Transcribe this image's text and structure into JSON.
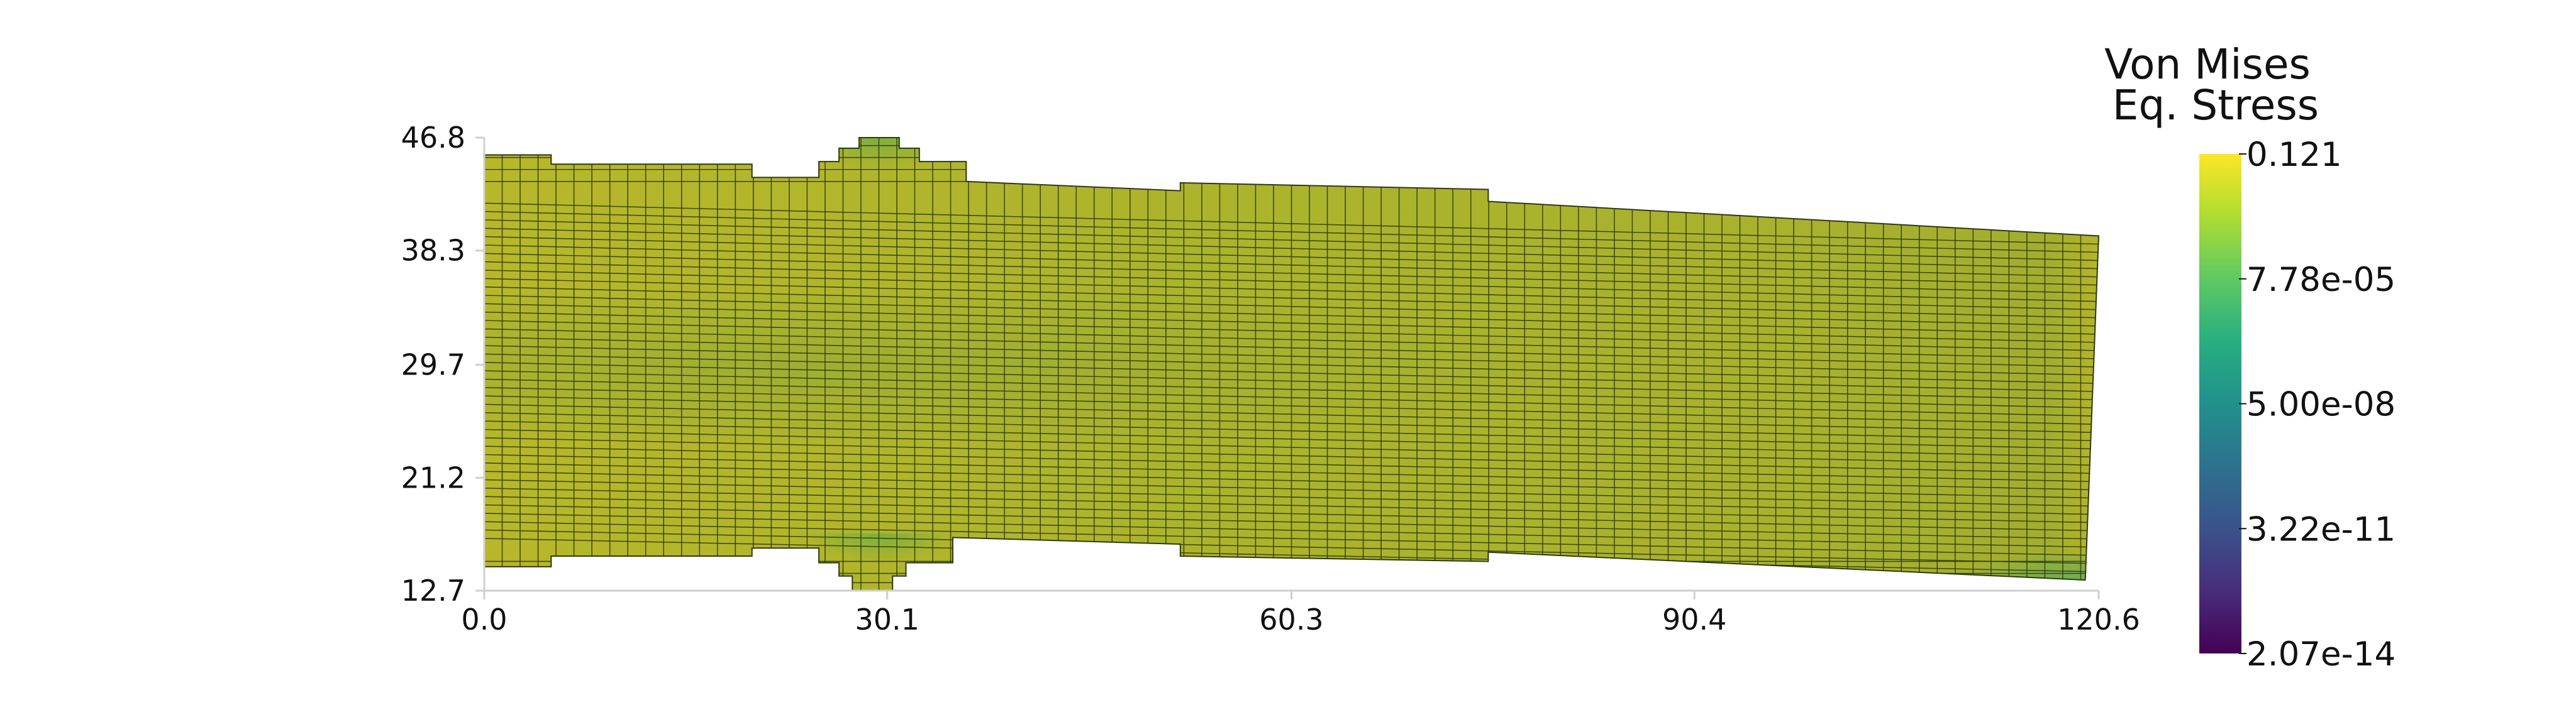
{
  "colorbar": {
    "title_line1": "Von Mises",
    "title_line2": "Eq. Stress",
    "labels": [
      "0.121",
      "7.78e-05",
      "5.00e-08",
      "3.22e-11",
      "2.07e-14"
    ],
    "colormap": "viridis"
  },
  "chart_data": {
    "type": "mesh-contour",
    "field": "Von Mises Eq. Stress",
    "x_ticks": [
      "0.0",
      "30.1",
      "60.3",
      "90.4",
      "120.6"
    ],
    "y_ticks": [
      "46.8",
      "38.3",
      "29.7",
      "21.2",
      "12.7"
    ],
    "xlim": [
      0.0,
      120.6
    ],
    "ylim": [
      12.7,
      46.8
    ],
    "scale": "log",
    "range": [
      2.07e-14,
      0.121
    ],
    "grid": false,
    "mesh": {
      "x_start": 0.0,
      "x_end": 120.6,
      "top_profile": [
        [
          0.0,
          45.5
        ],
        [
          5.0,
          45.5
        ],
        [
          5.0,
          44.8
        ],
        [
          20.0,
          44.8
        ],
        [
          20.0,
          43.8
        ],
        [
          25.0,
          43.8
        ],
        [
          25.0,
          45.0
        ],
        [
          26.5,
          45.0
        ],
        [
          26.5,
          46.0
        ],
        [
          28.0,
          46.0
        ],
        [
          28.0,
          46.8
        ],
        [
          31.0,
          46.8
        ],
        [
          31.0,
          46.0
        ],
        [
          32.5,
          46.0
        ],
        [
          32.5,
          45.0
        ],
        [
          36.0,
          45.0
        ],
        [
          36.0,
          43.5
        ],
        [
          52.0,
          42.8
        ],
        [
          52.0,
          43.4
        ],
        [
          75.0,
          42.9
        ],
        [
          75.0,
          42.0
        ],
        [
          120.6,
          39.4
        ]
      ],
      "bottom_profile": [
        [
          0.0,
          14.5
        ],
        [
          5.0,
          14.5
        ],
        [
          5.0,
          15.3
        ],
        [
          20.0,
          15.3
        ],
        [
          20.0,
          15.9
        ],
        [
          25.0,
          15.9
        ],
        [
          25.0,
          14.8
        ],
        [
          26.5,
          14.8
        ],
        [
          26.5,
          13.8
        ],
        [
          27.5,
          13.8
        ],
        [
          27.5,
          12.7
        ],
        [
          30.5,
          12.7
        ],
        [
          30.5,
          13.8
        ],
        [
          31.5,
          13.8
        ],
        [
          31.5,
          14.8
        ],
        [
          35.0,
          14.8
        ],
        [
          35.0,
          16.7
        ],
        [
          52.0,
          16.2
        ],
        [
          52.0,
          15.3
        ],
        [
          75.0,
          14.9
        ],
        [
          75.0,
          15.6
        ],
        [
          119.6,
          13.5
        ]
      ],
      "columns": 90,
      "rows": 42
    }
  }
}
